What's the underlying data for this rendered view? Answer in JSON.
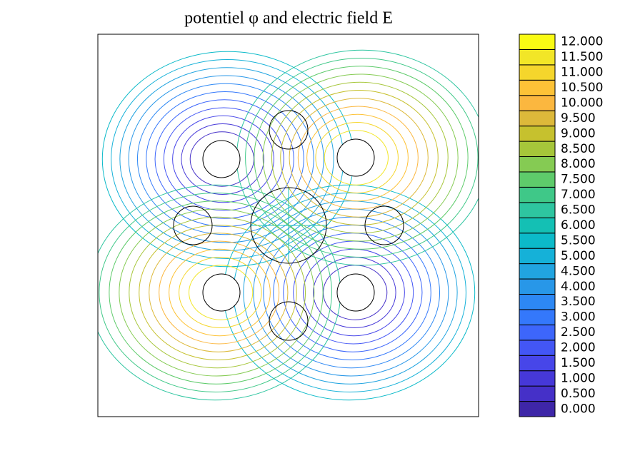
{
  "chart_data": {
    "type": "contour",
    "title": "potentiel φ and electric field E",
    "levels": [
      {
        "value": 0,
        "label": "0.000"
      },
      {
        "value": 0.5,
        "label": "0.500"
      },
      {
        "value": 1,
        "label": "1.000"
      },
      {
        "value": 1.5,
        "label": "1.500"
      },
      {
        "value": 2,
        "label": "2.000"
      },
      {
        "value": 2.5,
        "label": "2.500"
      },
      {
        "value": 3,
        "label": "3.000"
      },
      {
        "value": 3.5,
        "label": "3.500"
      },
      {
        "value": 4,
        "label": "4.000"
      },
      {
        "value": 4.5,
        "label": "4.500"
      },
      {
        "value": 5,
        "label": "5.000"
      },
      {
        "value": 5.5,
        "label": "5.500"
      },
      {
        "value": 6,
        "label": "6.000"
      },
      {
        "value": 6.5,
        "label": "6.500"
      },
      {
        "value": 7,
        "label": "7.000"
      },
      {
        "value": 7.5,
        "label": "7.500"
      },
      {
        "value": 8,
        "label": "8.000"
      },
      {
        "value": 8.5,
        "label": "8.500"
      },
      {
        "value": 9,
        "label": "9.000"
      },
      {
        "value": 9.5,
        "label": "9.500"
      },
      {
        "value": 10,
        "label": "10.000"
      },
      {
        "value": 10.5,
        "label": "10.500"
      },
      {
        "value": 11,
        "label": "11.000"
      },
      {
        "value": 11.5,
        "label": "11.500"
      },
      {
        "value": 12,
        "label": "12.000"
      }
    ],
    "colors": [
      "#3e26a8",
      "#4530c8",
      "#4638d8",
      "#4746e9",
      "#4356f5",
      "#3d66fb",
      "#3478fb",
      "#2d88f4",
      "#2897e8",
      "#21a4e0",
      "#15b1d8",
      "#0cbac9",
      "#14c0b4",
      "#2ec5a0",
      "#3fc888",
      "#5ecb6b",
      "#85cb53",
      "#a6c63a",
      "#c6c12e",
      "#ddb93a",
      "#fbb73f",
      "#fdc237",
      "#f5d62c",
      "#f2e627",
      "#f9fb14"
    ]
  }
}
